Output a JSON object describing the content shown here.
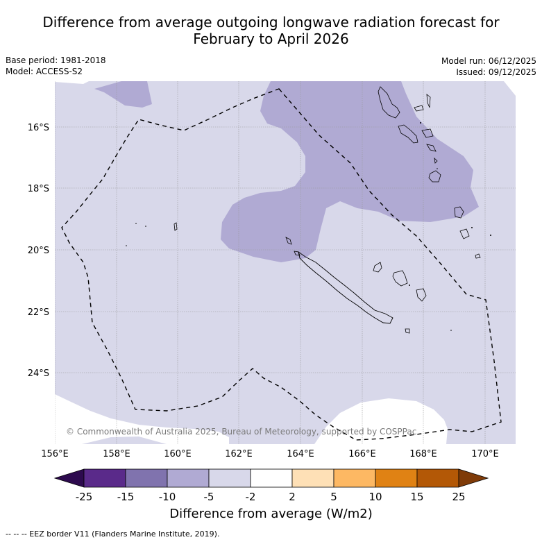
{
  "title_line1": "Difference from average outgoing longwave radiation forecast for",
  "title_line2": "February to April 2026",
  "base_period": "Base period: 1981-2018",
  "model": "Model: ACCESS-S2",
  "model_run": "Model run: 06/12/2025",
  "issued": "Issued: 09/12/2025",
  "copyright": "© Commonwealth of Australia 2025, Bureau of Meteorology, supported by COSPPac",
  "lon_ticks": [
    "156°E",
    "158°E",
    "160°E",
    "162°E",
    "164°E",
    "166°E",
    "168°E",
    "170°E"
  ],
  "lat_ticks": [
    "16°S",
    "18°S",
    "20°S",
    "22°S",
    "24°S"
  ],
  "colorbar": {
    "title": "Difference from average (W/m2)",
    "labels": [
      "-25",
      "-15",
      "-10",
      "-5",
      "-2",
      "2",
      "5",
      "10",
      "15",
      "25"
    ],
    "colors": [
      "#2d0a4e",
      "#5a2a8a",
      "#8073ae",
      "#b0aad3",
      "#d8d8ea",
      "#ffffff",
      "#fee0b6",
      "#fdb863",
      "#e08214",
      "#b35806",
      "#7f3b08"
    ]
  },
  "footnote": "--  --  -- EEZ border V11 (Flanders Marine Institute, 2019)."
}
